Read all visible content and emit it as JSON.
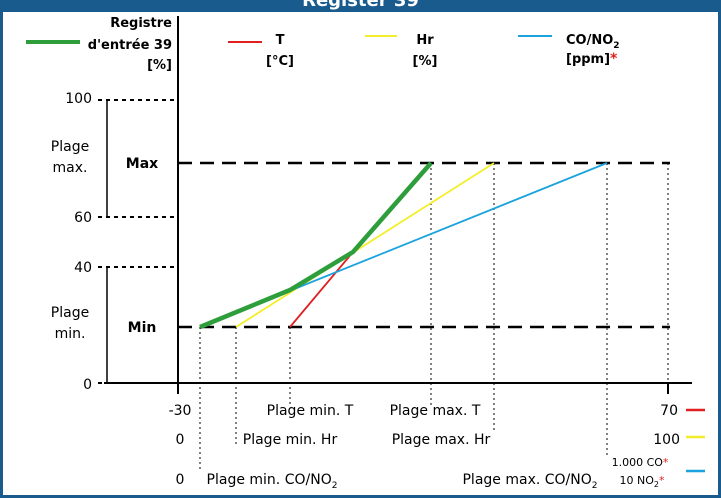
{
  "header": {
    "title": "Register 39",
    "bar_color": "#1a5b8e"
  },
  "legend": {
    "register": {
      "line1": "Registre",
      "line2": "d'entrée 39",
      "line3": "[%]",
      "color": "#2e9e3c"
    },
    "temp": {
      "line1": "T",
      "line2": "[°C]",
      "color": "#e02020"
    },
    "hr": {
      "line1": "Hr",
      "line2": "[%]",
      "color": "#f4ee2a"
    },
    "co": {
      "line1": "CO/NO",
      "sub": "2",
      "line2": "[ppm]",
      "asterisk": "*",
      "color": "#1aa3dd"
    }
  },
  "yaxis": {
    "ticks": [
      "100",
      "60",
      "40",
      "0"
    ],
    "band_max_line1": "Plage",
    "band_max_line2": "max.",
    "band_min_line1": "Plage",
    "band_min_line2": "min.",
    "max_label": "Max",
    "min_label": "Min"
  },
  "xaxis": {
    "row1": {
      "left": "-30",
      "min": "Plage min. T",
      "max": "Plage max. T",
      "right": "70"
    },
    "row2": {
      "left": "0",
      "min": "Plage min. Hr",
      "max": "Plage max. Hr",
      "right": "100"
    },
    "row3": {
      "left": "0",
      "min": "Plage min. CO/NO",
      "min_sub": "2",
      "max": "Plage max. CO/NO",
      "max_sub": "2",
      "right_co": "1.000 CO",
      "right_no": "10 NO",
      "right_no_sub": "2",
      "asterisk": "*"
    }
  },
  "chart_data": {
    "type": "line",
    "description_axes": "x spans each sensor range, y is register 39 output [%]",
    "series": [
      {
        "name": "T [°C]",
        "x": [
          -30,
          70
        ],
        "min_point": "Plage min. T",
        "max_point": "Plage max. T",
        "color": "#e02020"
      },
      {
        "name": "Hr [%]",
        "x": [
          0,
          100
        ],
        "min_point": "Plage min. Hr",
        "max_point": "Plage max. Hr",
        "color": "#f4ee2a"
      },
      {
        "name": "CO/NO2 [ppm]",
        "x": [
          "0",
          "1.000 CO / 10 NO2"
        ],
        "min_point": "Plage min. CO/NO2",
        "max_point": "Plage max. CO/NO2",
        "color": "#1aa3dd"
      }
    ],
    "y_levels": {
      "Max": "Plage max.",
      "Min": "Plage min."
    },
    "ylim": [
      0,
      100
    ]
  }
}
